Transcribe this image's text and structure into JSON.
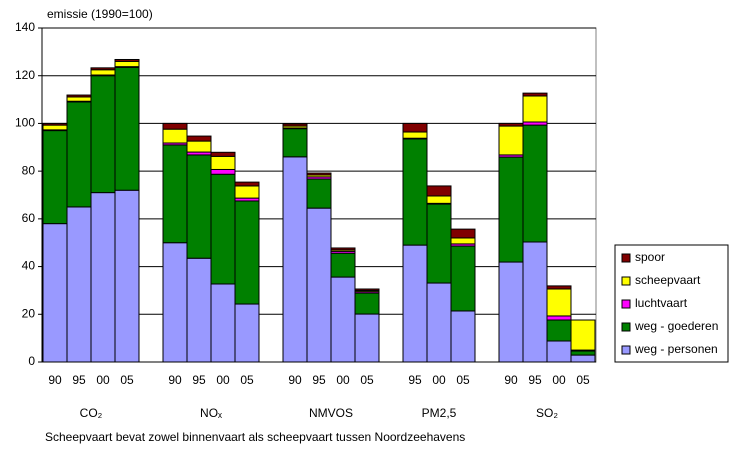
{
  "chart_data": {
    "type": "stacked-bar",
    "title": "emissie (1990=100)",
    "note": "Scheepvaart bevat zowel binnenvaart als scheepvaart tussen Noordzeehavens",
    "categories": [
      "90",
      "95",
      "00",
      "05",
      null,
      "90",
      "95",
      "00",
      "05",
      null,
      "90",
      "95",
      "00",
      "05",
      null,
      "95",
      "00",
      "05",
      null,
      "90",
      "95",
      "00",
      "05"
    ],
    "groups": [
      "CO₂",
      "NOₓ",
      "NMVOS",
      "PM2,5",
      "SO₂"
    ],
    "ylim": [
      0,
      140
    ],
    "yticks": [
      0,
      20,
      40,
      60,
      80,
      100,
      120,
      140
    ],
    "grid": true,
    "legend": "right",
    "series": [
      {
        "name": "weg - personen",
        "color": "#9999ff",
        "values": [
          58,
          65,
          71,
          72,
          null,
          50,
          43.5,
          32.7,
          24.3,
          null,
          86,
          64.5,
          35.6,
          20.1,
          null,
          49,
          33.1,
          21.4,
          null,
          41.9,
          50.3,
          8.8,
          2.9
        ]
      },
      {
        "name": "weg - goederen",
        "color": "#008000",
        "values": [
          39,
          44,
          49,
          51.5,
          null,
          41,
          43.3,
          46,
          43.2,
          null,
          11.8,
          12.2,
          10,
          8.8,
          null,
          44.5,
          33.1,
          27.2,
          null,
          44,
          49,
          8.8,
          1.7
        ]
      },
      {
        "name": "luchtvaart",
        "color": "#ff00ff",
        "values": [
          0.3,
          0.3,
          0.3,
          0.3,
          null,
          0.8,
          1.2,
          2,
          1.2,
          null,
          0.3,
          0.9,
          0.8,
          0.6,
          null,
          0.3,
          0.3,
          0.9,
          null,
          0.9,
          1.3,
          1.7,
          0.4
        ]
      },
      {
        "name": "scheepvaart",
        "color": "#ffff00",
        "values": [
          2,
          1.8,
          2.2,
          2.2,
          null,
          5.8,
          4.6,
          5.5,
          5.1,
          null,
          0.8,
          0.8,
          0.6,
          0.5,
          null,
          2.6,
          3.1,
          2.5,
          null,
          12.1,
          10.9,
          11.3,
          12.6
        ]
      },
      {
        "name": "spoor",
        "color": "#800000",
        "values": [
          0.7,
          0.8,
          0.8,
          0.8,
          null,
          2.4,
          2.1,
          1.7,
          1.6,
          null,
          0.9,
          0.8,
          0.8,
          0.6,
          null,
          3.6,
          4.2,
          3.7,
          null,
          1.1,
          1.2,
          1.3,
          0
        ]
      }
    ]
  }
}
